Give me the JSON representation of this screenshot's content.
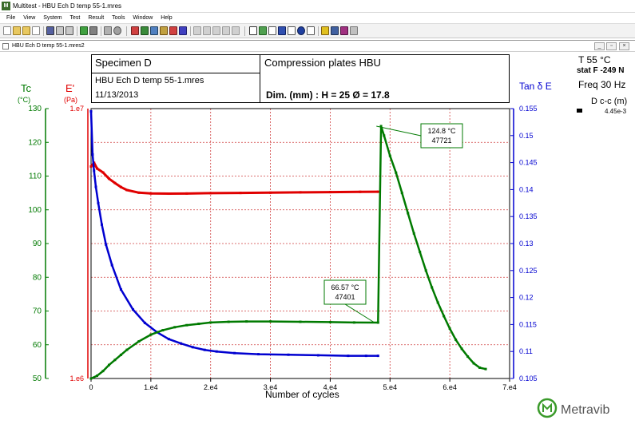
{
  "window": {
    "title": "Multitest - HBU Ech D  temp 55-1.mres",
    "icon": "M"
  },
  "menu": [
    "File",
    "View",
    "System",
    "Test",
    "Result",
    "Tools",
    "Window",
    "Help"
  ],
  "document": {
    "title": "HBU Ech D  temp 55-1.mres2"
  },
  "info": {
    "specimen": "Specimen D",
    "file": "HBU Ech D  temp 55-1.mres",
    "date": "11/13/2013",
    "test_name": "Compression plates HBU",
    "dimensions": "Dim. (mm)  : H = 25  Ø = 17.8"
  },
  "side_panel": {
    "temperature": "T 55  °C",
    "static_force": "stat F  -249  N",
    "frequency": "Freq 30  Hz",
    "dcc_label": "D c-c (m)",
    "dcc_value": "4.45e-3"
  },
  "axes": {
    "tc": {
      "title": "Tc",
      "unit": "(°C)",
      "color": "#007a00",
      "ticks": [
        "130",
        "120",
        "110",
        "100",
        "90",
        "80",
        "70",
        "60",
        "50"
      ]
    },
    "e": {
      "title": "E'",
      "unit": "(Pa)",
      "color": "#e00000",
      "ticks": [
        "1.e7",
        "1.e6"
      ]
    },
    "tan": {
      "title": "Tan δ E",
      "color": "#0000d0",
      "ticks": [
        "0.155",
        "0.15",
        "0.145",
        "0.14",
        "0.135",
        "0.13",
        "0.125",
        "0.12",
        "0.115",
        "0.11",
        "0.105"
      ]
    },
    "x": {
      "title": "Number of cycles",
      "ticks": [
        "0",
        "1.e4",
        "2.e4",
        "3.e4",
        "4.e4",
        "5.e4",
        "6.e4",
        "7.e4"
      ]
    }
  },
  "chart_data": {
    "type": "line",
    "xlabel": "Number of cycles",
    "xlim": [
      0,
      70000
    ],
    "grid": true,
    "axes": {
      "tc": {
        "ylim": [
          50,
          130
        ]
      },
      "e": {
        "ylim": [
          1000000,
          10000000
        ],
        "scale": "log"
      },
      "tan": {
        "ylim": [
          0.105,
          0.155
        ]
      }
    },
    "series": [
      {
        "axis": "e",
        "color": "#e00000",
        "x": [
          0,
          500,
          1000,
          2000,
          3000,
          4000,
          5000,
          6000,
          8000,
          10000,
          13000,
          16000,
          20000,
          25000,
          30000,
          35000,
          40000,
          45000,
          48000
        ],
        "y": [
          6100000,
          6300000,
          6000000,
          5800000,
          5500000,
          5300000,
          5120000,
          4990000,
          4880000,
          4850000,
          4840000,
          4845000,
          4860000,
          4870000,
          4880000,
          4895000,
          4905000,
          4915000,
          4920000
        ]
      },
      {
        "axis": "tan",
        "color": "#0000d0",
        "x": [
          0,
          250,
          500,
          800,
          1200,
          1800,
          2500,
          3500,
          5000,
          7000,
          9000,
          11000,
          13000,
          15000,
          17000,
          19000,
          21000,
          24000,
          28000,
          33000,
          38000,
          43000,
          46000,
          48000
        ],
        "y": [
          0.1545,
          0.1465,
          0.1435,
          0.1405,
          0.1375,
          0.1335,
          0.1298,
          0.126,
          0.1215,
          0.1178,
          0.1153,
          0.1136,
          0.1123,
          0.1115,
          0.1108,
          0.1103,
          0.11,
          0.1097,
          0.1095,
          0.1094,
          0.1093,
          0.1092,
          0.1092,
          0.1092
        ]
      },
      {
        "axis": "tc",
        "color": "#007a00",
        "x": [
          0,
          1000,
          2000,
          3000,
          4000,
          5000,
          6000,
          8000,
          10000,
          12000,
          14000,
          16000,
          18000,
          20000,
          23000,
          26000,
          30000,
          35000,
          40000,
          44000,
          48000,
          48500,
          49000,
          50000,
          51000,
          52000,
          53000,
          54000,
          55000,
          56000,
          57000,
          58000,
          59000,
          60000,
          61000,
          62000,
          63000,
          64000,
          65000,
          66000
        ],
        "y": [
          50,
          50.8,
          52.2,
          54,
          55.5,
          57,
          58.5,
          61,
          63,
          64.3,
          65.2,
          65.8,
          66.2,
          66.6,
          66.8,
          66.9,
          66.9,
          66.8,
          66.7,
          66.6,
          66.57,
          124.8,
          122,
          116,
          111,
          105,
          99,
          93,
          87.5,
          82,
          77,
          72.5,
          68.5,
          64.8,
          61.5,
          58.8,
          56.5,
          54.5,
          53.2,
          52.8
        ]
      }
    ],
    "annotations": [
      {
        "label_temp": "66.57 °C",
        "label_cycles": "47401",
        "x": 47401,
        "y": 66.57
      },
      {
        "label_temp": "124.8 °C",
        "label_cycles": "47721",
        "x": 47721,
        "y": 124.8
      }
    ]
  },
  "logo": {
    "text": "Metravib",
    "color": "#3a9a2a"
  }
}
